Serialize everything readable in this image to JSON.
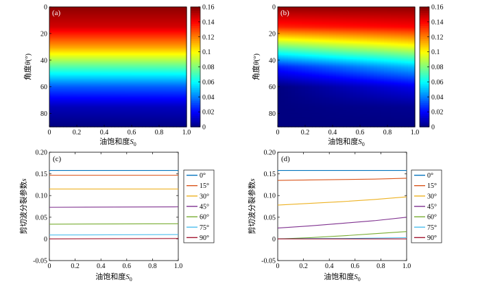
{
  "chart_data": [
    {
      "type": "heatmap",
      "panel_label": "(a)",
      "xlabel_main": "油饱和度",
      "xlabel_sym": "S",
      "xlabel_sub": "0",
      "ylabel_main": "角度",
      "ylabel_sym": "θ",
      "ylabel_unit": "(°)",
      "xlim": [
        0,
        1
      ],
      "ylim": [
        0,
        90
      ],
      "xticks": [
        "0",
        "0.2",
        "0.4",
        "0.6",
        "0.8",
        "1.0"
      ],
      "yticks": [
        "0",
        "20",
        "40",
        "60",
        "80"
      ],
      "colorbar": {
        "min": 0,
        "max": 0.16,
        "ticks": [
          "0",
          "0.02",
          "0.04",
          "0.06",
          "0.08",
          "0.1",
          "0.12",
          "0.14",
          "0.16"
        ]
      },
      "value_model": {
        "at_S0_0": [
          0.158,
          0.147,
          0.115,
          0.073,
          0.034,
          0.009,
          0.0
        ],
        "at_S0_1": [
          0.158,
          0.147,
          0.115,
          0.074,
          0.035,
          0.01,
          0.001
        ],
        "theta": [
          0,
          15,
          30,
          45,
          60,
          75,
          90
        ]
      }
    },
    {
      "type": "heatmap",
      "panel_label": "(b)",
      "xlabel_main": "油饱和度",
      "xlabel_sym": "S",
      "xlabel_sub": "0",
      "ylabel_main": "角度",
      "ylabel_sym": "θ",
      "ylabel_unit": "(°)",
      "xlim": [
        0,
        1
      ],
      "ylim": [
        0,
        90
      ],
      "xticks": [
        "0",
        "0.2",
        "0.4",
        "0.6",
        "0.8",
        "1.0"
      ],
      "yticks": [
        "0",
        "20",
        "40",
        "60",
        "80"
      ],
      "colorbar": {
        "min": 0,
        "max": 0.16,
        "ticks": [
          "0",
          "0.02",
          "0.04",
          "0.06",
          "0.08",
          "0.1",
          "0.12",
          "0.14",
          "0.16"
        ]
      },
      "value_model": {
        "at_S0_0": [
          0.158,
          0.135,
          0.078,
          0.025,
          0.0,
          0.0,
          0.0
        ],
        "at_S0_1": [
          0.158,
          0.14,
          0.097,
          0.05,
          0.017,
          0.003,
          0.0
        ],
        "theta": [
          0,
          15,
          30,
          45,
          60,
          75,
          90
        ]
      }
    },
    {
      "type": "line",
      "panel_label": "(c)",
      "xlabel_main": "油饱和度",
      "xlabel_sym": "S",
      "xlabel_sub": "0",
      "ylabel_main": "剪切波分裂参数",
      "ylabel_sym": "s",
      "xlim": [
        0,
        1
      ],
      "ylim": [
        -0.05,
        0.2
      ],
      "xticks": [
        "0",
        "0.2",
        "0.4",
        "0.6",
        "0.8",
        "1.0"
      ],
      "yticks": [
        "-0.05",
        "0",
        "0.05",
        "0.10",
        "0.15",
        "0.20"
      ],
      "x": [
        0,
        1
      ],
      "series": [
        {
          "name": "0°",
          "color": "#0072BD",
          "values": [
            0.158,
            0.158
          ]
        },
        {
          "name": "15°",
          "color": "#D95319",
          "values": [
            0.147,
            0.147
          ]
        },
        {
          "name": "30°",
          "color": "#EDB120",
          "values": [
            0.115,
            0.115
          ]
        },
        {
          "name": "45°",
          "color": "#7E2F8E",
          "values": [
            0.073,
            0.074
          ]
        },
        {
          "name": "60°",
          "color": "#77AC30",
          "values": [
            0.034,
            0.035
          ]
        },
        {
          "name": "75°",
          "color": "#4DBEEE",
          "values": [
            0.009,
            0.01
          ]
        },
        {
          "name": "90°",
          "color": "#A2142F",
          "values": [
            0.0,
            0.001
          ]
        }
      ]
    },
    {
      "type": "line",
      "panel_label": "(d)",
      "xlabel_main": "油饱和度",
      "xlabel_sym": "S",
      "xlabel_sub": "0",
      "ylabel_main": "剪切波分裂参数",
      "ylabel_sym": "s",
      "xlim": [
        0,
        1
      ],
      "ylim": [
        -0.05,
        0.2
      ],
      "xticks": [
        "0",
        "0.2",
        "0.4",
        "0.6",
        "0.8",
        "1.0"
      ],
      "yticks": [
        "-0.05",
        "0",
        "0.05",
        "0.10",
        "0.15",
        "0.20"
      ],
      "x": [
        0,
        0.25,
        0.5,
        0.75,
        1
      ],
      "series": [
        {
          "name": "0°",
          "color": "#0072BD",
          "values": [
            0.158,
            0.158,
            0.158,
            0.158,
            0.158
          ]
        },
        {
          "name": "15°",
          "color": "#D95319",
          "values": [
            0.135,
            0.136,
            0.137,
            0.138,
            0.14
          ]
        },
        {
          "name": "30°",
          "color": "#EDB120",
          "values": [
            0.078,
            0.082,
            0.086,
            0.091,
            0.097
          ]
        },
        {
          "name": "45°",
          "color": "#7E2F8E",
          "values": [
            0.025,
            0.03,
            0.036,
            0.042,
            0.05
          ]
        },
        {
          "name": "60°",
          "color": "#77AC30",
          "values": [
            0.0,
            0.003,
            0.007,
            0.012,
            0.017
          ]
        },
        {
          "name": "75°",
          "color": "#4DBEEE",
          "values": [
            0.0,
            0.001,
            0.001,
            0.002,
            0.003
          ]
        },
        {
          "name": "90°",
          "color": "#A2142F",
          "values": [
            0.0,
            0.0,
            0.0,
            0.0,
            0.0
          ]
        }
      ]
    }
  ]
}
